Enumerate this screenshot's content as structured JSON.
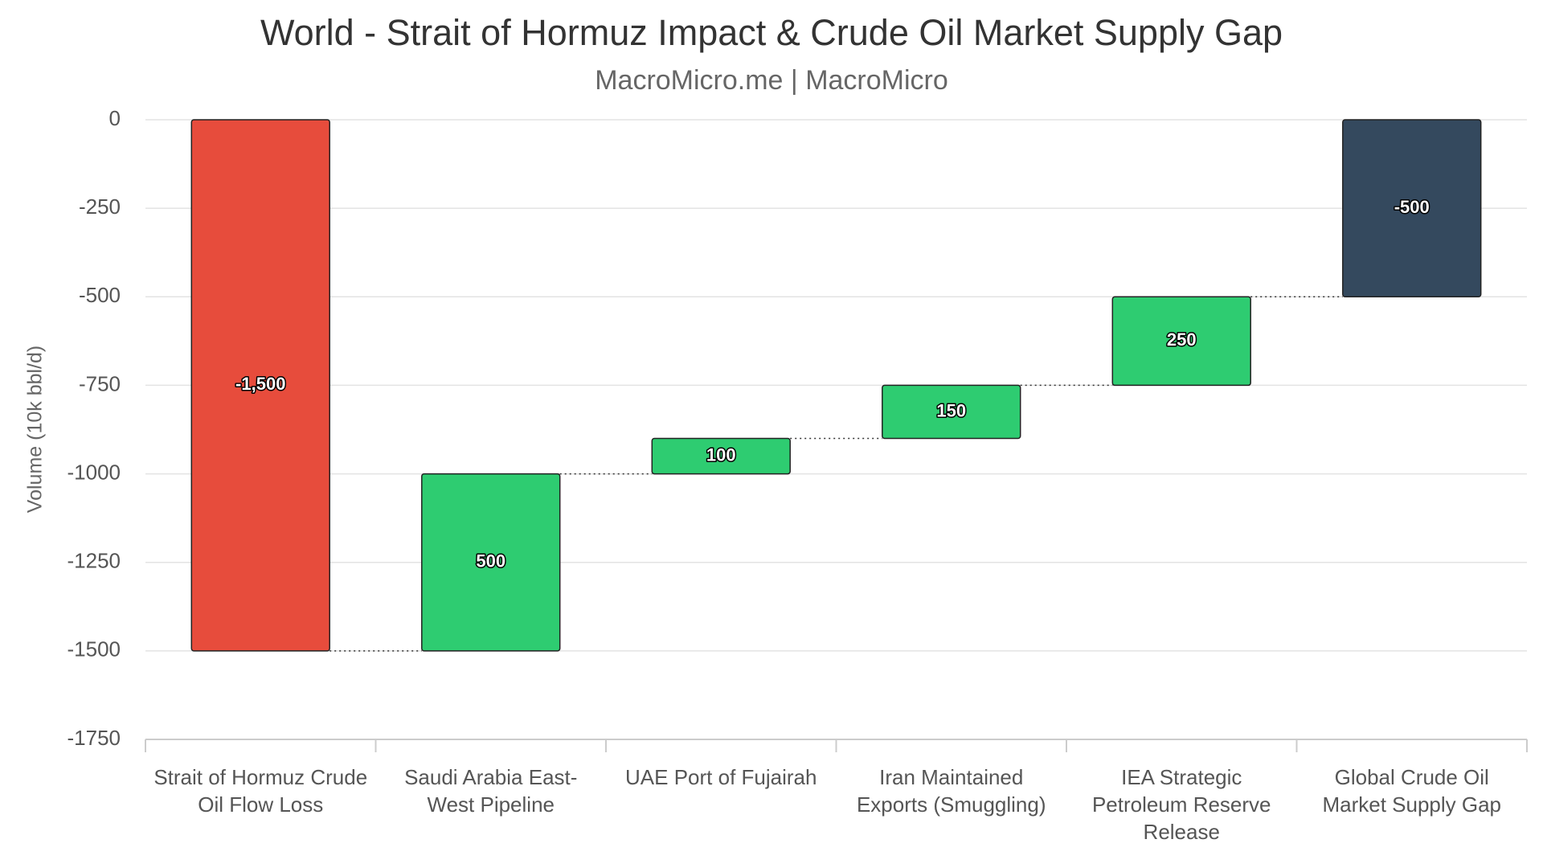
{
  "chart_data": {
    "type": "waterfall",
    "title": "World - Strait of Hormuz Impact & Crude Oil Market Supply Gap",
    "subtitle": "MacroMicro.me | MacroMicro",
    "y_label": "Volume (10k bbl/d)",
    "categories": [
      "Strait of Hormuz Crude Oil Flow Loss",
      "Saudi Arabia East-West Pipeline",
      "UAE Port of Fujairah",
      "Iran Maintained Exports (Smuggling)",
      "IEA Strategic Petroleum Reserve Release",
      "Global Crude Oil Market Supply Gap"
    ],
    "values": [
      -1500,
      500,
      100,
      150,
      250,
      -500
    ],
    "value_labels": [
      "-1,500",
      "500",
      "100",
      "150",
      "250",
      "-500"
    ],
    "is_total": [
      false,
      false,
      false,
      false,
      false,
      true
    ],
    "colors": [
      "#e74c3c",
      "#2ecc71",
      "#2ecc71",
      "#2ecc71",
      "#2ecc71",
      "#34495e"
    ],
    "ylim": [
      -1750,
      0
    ],
    "yticks": [
      0,
      -250,
      -500,
      -750,
      -1000,
      -1250,
      -1500,
      -1750
    ],
    "grid": true
  }
}
